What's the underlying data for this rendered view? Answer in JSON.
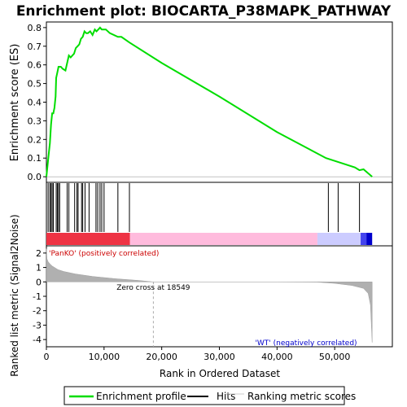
{
  "chart_data": {
    "type": "line",
    "title": "Enrichment plot: BIOCARTA_P38MAPK_PATHWAY",
    "enrichment_panel": {
      "ylabel": "Enrichment score (ES)",
      "ylim": [
        -0.03,
        0.83
      ],
      "yticks": [
        "0.0",
        "0.1",
        "0.2",
        "0.3",
        "0.4",
        "0.5",
        "0.6",
        "0.7",
        "0.8"
      ],
      "ytick_values": [
        0.0,
        0.1,
        0.2,
        0.3,
        0.4,
        0.5,
        0.6,
        0.7,
        0.8
      ],
      "series": [
        {
          "name": "Enrichment profile",
          "color": "#00dd00",
          "x": [
            0,
            200,
            400,
            600,
            800,
            1000,
            1200,
            1400,
            1600,
            1700,
            1900,
            2100,
            2300,
            2500,
            2800,
            3300,
            3600,
            3900,
            4200,
            4800,
            5100,
            5400,
            5700,
            6000,
            6300,
            6600,
            6900,
            7200,
            7600,
            8000,
            8400,
            8700,
            9000,
            9300,
            9600,
            9900,
            10300,
            11000,
            12400,
            13000,
            14400,
            20000,
            30000,
            40000,
            48500,
            51000,
            53500,
            54300,
            55000,
            56500
          ],
          "y": [
            0.0,
            0.06,
            0.12,
            0.18,
            0.28,
            0.34,
            0.34,
            0.37,
            0.43,
            0.53,
            0.56,
            0.59,
            0.59,
            0.59,
            0.58,
            0.57,
            0.61,
            0.65,
            0.64,
            0.66,
            0.69,
            0.7,
            0.71,
            0.74,
            0.75,
            0.78,
            0.77,
            0.77,
            0.78,
            0.76,
            0.79,
            0.78,
            0.79,
            0.8,
            0.79,
            0.79,
            0.79,
            0.77,
            0.75,
            0.75,
            0.72,
            0.61,
            0.43,
            0.24,
            0.1,
            0.075,
            0.05,
            0.035,
            0.04,
            0.0
          ]
        }
      ]
    },
    "hits_panel": {
      "hit_positions": [
        300,
        600,
        800,
        1000,
        1200,
        1700,
        1900,
        2100,
        2300,
        3600,
        3900,
        4900,
        5300,
        5500,
        6100,
        6300,
        6700,
        7400,
        8600,
        8900,
        9300,
        9600,
        10000,
        12400,
        14400,
        48900,
        50600,
        54300
      ],
      "colorbar_segments": [
        {
          "from": 0,
          "to": 14500,
          "color": "#ee3344"
        },
        {
          "from": 14500,
          "to": 47000,
          "color": "#ffbbdd"
        },
        {
          "from": 47000,
          "to": 54500,
          "color": "#ccccff"
        },
        {
          "from": 54500,
          "to": 55500,
          "color": "#4444ee"
        },
        {
          "from": 55500,
          "to": 56500,
          "color": "#0000cc"
        }
      ]
    },
    "metric_panel": {
      "ylabel": "Ranked list metric (Signal2Noise)",
      "ylim": [
        -4.5,
        2.5
      ],
      "yticks": [
        "2",
        "1",
        "0",
        "-1",
        "-2",
        "-3",
        "-4"
      ],
      "ytick_values": [
        2,
        1,
        0,
        -1,
        -2,
        -3,
        -4
      ],
      "metric_curve": {
        "x": [
          0,
          100,
          300,
          600,
          1000,
          2000,
          3000,
          5000,
          8000,
          12000,
          16000,
          18549,
          30000,
          40000,
          47000,
          50000,
          53000,
          55000,
          55800,
          56200,
          56500
        ],
        "y": [
          2.3,
          1.6,
          1.4,
          1.25,
          1.1,
          0.85,
          0.72,
          0.55,
          0.38,
          0.22,
          0.1,
          0.0,
          0.0,
          0.0,
          -0.02,
          -0.1,
          -0.25,
          -0.45,
          -0.8,
          -1.6,
          -4.2
        ]
      },
      "zero_cross_label": "Zero cross at 18549",
      "zero_cross_x": 18549,
      "pos_label": "'PanKO' (positively correlated)",
      "neg_label": "'WT' (negatively correlated)",
      "pos_color": "#cc0000",
      "neg_color": "#0000cc"
    },
    "x_axis": {
      "xlabel": "Rank in Ordered Dataset",
      "xlim": [
        0,
        60000
      ],
      "xticks": [
        "0",
        "10,000",
        "20,000",
        "30,000",
        "40,000",
        "50,000"
      ],
      "xtick_values": [
        0,
        10000,
        20000,
        30000,
        40000,
        50000
      ]
    },
    "legend": {
      "placement": "bottom",
      "items": [
        {
          "label": "Enrichment profile",
          "color": "#00dd00",
          "kind": "line"
        },
        {
          "label": "Hits",
          "color": "#000000",
          "kind": "line"
        },
        {
          "label": "Ranking metric scores",
          "color": "#cccccc",
          "kind": "line"
        }
      ]
    }
  }
}
